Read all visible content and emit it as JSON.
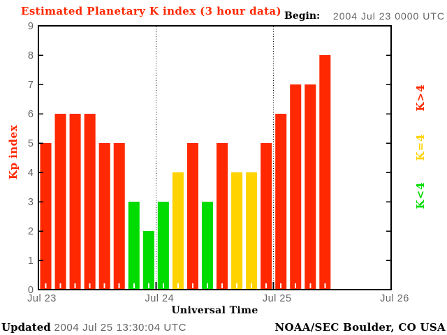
{
  "header": {
    "title": "Estimated Planetary K index (3 hour data)",
    "begin_label": "Begin:",
    "begin_value": "2004 Jul 23 0000 UTC"
  },
  "chart_data": {
    "type": "bar",
    "title": "Estimated Planetary K index (3 hour data)",
    "xlabel": "Universal Time",
    "ylabel": "Kp index",
    "ylim": [
      0,
      9
    ],
    "yticks": [
      0,
      1,
      2,
      3,
      4,
      5,
      6,
      7,
      8,
      9
    ],
    "x_day_labels": [
      "Jul 23",
      "Jul 24",
      "Jul 25",
      "Jul 26"
    ],
    "hours_per_bar": 3,
    "slots_per_day": 8,
    "days_shown": 3,
    "begin_utc": "2004 Jul 23 0000 UTC",
    "values": [
      5,
      6,
      6,
      6,
      5,
      5,
      3,
      2,
      3,
      4,
      5,
      3,
      5,
      4,
      4,
      5,
      6,
      7,
      7,
      8
    ],
    "day_values": {
      "Jul 23": [
        5,
        6,
        6,
        6,
        5,
        5,
        3,
        2
      ],
      "Jul 24": [
        3,
        4,
        5,
        3,
        5,
        4,
        4,
        5
      ],
      "Jul 25": [
        6,
        7,
        7,
        8
      ]
    },
    "color_rule": "K>4 red, K=4 yellow, K<4 green",
    "colors": {
      "gt4": "#ff2800",
      "eq4": "#ffd300",
      "lt4": "#00dc00"
    },
    "axis_text_color": "#646464",
    "grid": "dotted vertical lines at day boundaries",
    "legend_position": "right margin, rotated 90deg"
  },
  "legend": {
    "items": [
      {
        "label": "K>4",
        "color": "#ff2800"
      },
      {
        "label": "K=4",
        "color": "#ffd300"
      },
      {
        "label": "K<4",
        "color": "#00dc00"
      }
    ]
  },
  "footer": {
    "updated_label": "Updated",
    "updated_value": "2004 Jul 25 13:30:04 UTC",
    "credit": "NOAA/SEC Boulder, CO USA"
  }
}
